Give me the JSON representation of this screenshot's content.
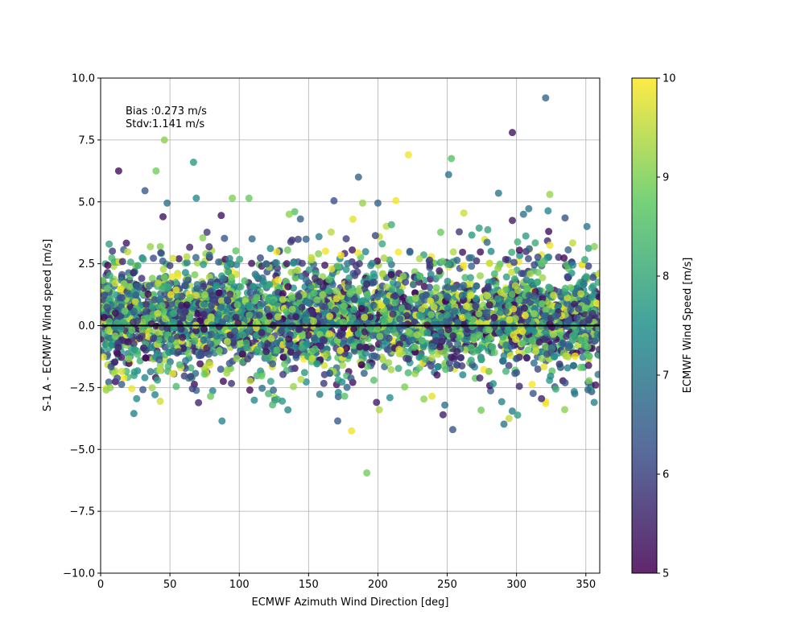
{
  "chart_data": {
    "type": "scatter",
    "xlabel": "ECMWF Azimuth Wind Direction [deg]",
    "ylabel": "S-1 A - ECMWF Wind speed [m/s]",
    "xlim": [
      0,
      360
    ],
    "ylim": [
      -10,
      10
    ],
    "xticks": [
      0,
      50,
      100,
      150,
      200,
      250,
      300,
      350
    ],
    "yticks": [
      -10.0,
      -7.5,
      -5.0,
      -2.5,
      0.0,
      2.5,
      5.0,
      7.5,
      10.0
    ],
    "ytick_labels": [
      "−10.0",
      "−7.5",
      "−5.0",
      "−2.5",
      "0.0",
      "2.5",
      "5.0",
      "7.5",
      "10.0"
    ],
    "grid": true,
    "reference_line_y": 0,
    "annotations": [
      "Bias :0.273 m/s",
      "Stdv:1.141 m/s"
    ],
    "colorbar": {
      "label": "ECMWF Wind Speed [m/s]",
      "range": [
        5,
        10
      ],
      "ticks": [
        5,
        6,
        7,
        8,
        9,
        10
      ],
      "colormap": "viridis",
      "stops": [
        "#440154",
        "#3b528b",
        "#21918c",
        "#5ec962",
        "#fde725"
      ]
    },
    "point_alpha": 0.8,
    "outliers": [
      {
        "x": 321,
        "y": 9.2,
        "c": 6.6
      },
      {
        "x": 297,
        "y": 7.8,
        "c": 5.3
      },
      {
        "x": 46,
        "y": 7.5,
        "c": 9.1
      },
      {
        "x": 222,
        "y": 6.9,
        "c": 9.9
      },
      {
        "x": 67,
        "y": 6.6,
        "c": 7.7
      },
      {
        "x": 253,
        "y": 6.75,
        "c": 8.6
      },
      {
        "x": 40,
        "y": 6.25,
        "c": 8.9
      },
      {
        "x": 13,
        "y": 6.25,
        "c": 5.2
      },
      {
        "x": 251,
        "y": 6.1,
        "c": 6.9
      },
      {
        "x": 186,
        "y": 6.0,
        "c": 6.6
      },
      {
        "x": 32,
        "y": 5.45,
        "c": 6.4
      },
      {
        "x": 287,
        "y": 5.35,
        "c": 7.0
      },
      {
        "x": 324,
        "y": 5.3,
        "c": 9.2
      },
      {
        "x": 69,
        "y": 5.15,
        "c": 7.4
      },
      {
        "x": 95,
        "y": 5.15,
        "c": 9.0
      },
      {
        "x": 107,
        "y": 5.15,
        "c": 8.8
      },
      {
        "x": 213,
        "y": 5.05,
        "c": 9.9
      },
      {
        "x": 48,
        "y": 4.95,
        "c": 6.8
      },
      {
        "x": 200,
        "y": 4.95,
        "c": 6.6
      },
      {
        "x": 189,
        "y": 4.95,
        "c": 9.2
      },
      {
        "x": 262,
        "y": 4.55,
        "c": 9.6
      },
      {
        "x": 140,
        "y": 4.6,
        "c": 8.6
      },
      {
        "x": 45,
        "y": 4.4,
        "c": 5.3
      },
      {
        "x": 87,
        "y": 4.45,
        "c": 5.3
      },
      {
        "x": 136,
        "y": 4.5,
        "c": 9.1
      },
      {
        "x": 305,
        "y": 4.5,
        "c": 6.9
      },
      {
        "x": 182,
        "y": 4.3,
        "c": 9.8
      },
      {
        "x": 335,
        "y": 4.35,
        "c": 6.3
      },
      {
        "x": 297,
        "y": 4.25,
        "c": 5.4
      },
      {
        "x": 181,
        "y": -4.25,
        "c": 9.9
      },
      {
        "x": 254,
        "y": -4.2,
        "c": 6.3
      },
      {
        "x": 192,
        "y": -5.95,
        "c": 8.9
      },
      {
        "x": 171,
        "y": -3.85,
        "c": 6.4
      },
      {
        "x": 247,
        "y": -3.6,
        "c": 5.5
      },
      {
        "x": 24,
        "y": -3.55,
        "c": 7.2
      },
      {
        "x": 201,
        "y": -3.4,
        "c": 9.4
      },
      {
        "x": 124,
        "y": -3.2,
        "c": 8.4
      },
      {
        "x": 131,
        "y": -3.05,
        "c": 7.7
      },
      {
        "x": 199,
        "y": -3.1,
        "c": 5.4
      },
      {
        "x": 356,
        "y": -3.1,
        "c": 7.2
      },
      {
        "x": 321,
        "y": -3.15,
        "c": 9.9
      },
      {
        "x": 26,
        "y": -2.95,
        "c": 7.4
      },
      {
        "x": 176,
        "y": -2.85,
        "c": 8.6
      },
      {
        "x": 239,
        "y": -2.85,
        "c": 9.8
      },
      {
        "x": 342,
        "y": -2.75,
        "c": 6.9
      },
      {
        "x": 4,
        "y": -2.6,
        "c": 9.2
      },
      {
        "x": 318,
        "y": -2.95,
        "c": 5.5
      },
      {
        "x": 302,
        "y": -2.45,
        "c": 5.6
      },
      {
        "x": 357,
        "y": -2.4,
        "c": 5.3
      }
    ]
  }
}
